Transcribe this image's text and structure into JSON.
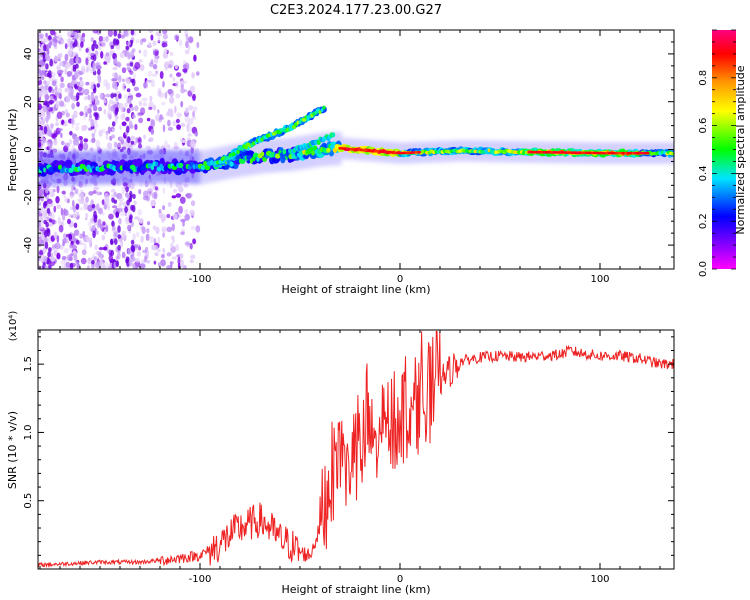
{
  "title": "C2E3.2024.177.23.00.G27",
  "chart_data": [
    {
      "type": "heatmap",
      "xlabel": "Height of straight line (km)",
      "ylabel": "Frequency (Hz)",
      "xlim": [
        -181,
        137
      ],
      "ylim": [
        -50,
        50
      ],
      "x_ticks": [
        "-100",
        "0",
        "100"
      ],
      "y_ticks": [
        "-40",
        "-20",
        "0",
        "20",
        "40"
      ],
      "colorbar": {
        "label": "Normalized spectral amplitude",
        "range": [
          0,
          1
        ],
        "ticks": [
          "0.0",
          "0.2",
          "0.4",
          "0.6",
          "0.8"
        ],
        "colors": [
          "#ff00ff",
          "#8800ff",
          "#0000ff",
          "#00e5ff",
          "#00ff00",
          "#ffff00",
          "#ff9900",
          "#ff0000",
          "#ff0080"
        ]
      },
      "main_track": [
        {
          "x": -181,
          "f": -8
        },
        {
          "x": -150,
          "f": -7.5
        },
        {
          "x": -120,
          "f": -7
        },
        {
          "x": -100,
          "f": -7.5
        },
        {
          "x": -85,
          "f": -5
        },
        {
          "x": -70,
          "f": -3
        },
        {
          "x": -55,
          "f": -2
        },
        {
          "x": -40,
          "f": 0
        },
        {
          "x": -30,
          "f": 0.5
        },
        {
          "x": -15,
          "f": -0.5
        },
        {
          "x": 0,
          "f": -1.5
        },
        {
          "x": 30,
          "f": -0.5
        },
        {
          "x": 60,
          "f": -1
        },
        {
          "x": 100,
          "f": -1.5
        },
        {
          "x": 137,
          "f": -1.5
        }
      ],
      "branch_track": [
        {
          "x": -92,
          "f": -6
        },
        {
          "x": -80,
          "f": 0
        },
        {
          "x": -70,
          "f": 4
        },
        {
          "x": -55,
          "f": 9
        },
        {
          "x": -45,
          "f": 14
        },
        {
          "x": -38,
          "f": 17
        }
      ]
    },
    {
      "type": "line",
      "xlabel": "Height of straight line (km)",
      "ylabel": "SNR (10 * v/v)",
      "y_multiplier": "(x10⁴)",
      "xlim": [
        -181,
        137
      ],
      "ylim": [
        0,
        1.75
      ],
      "x_ticks": [
        "-100",
        "0",
        "100"
      ],
      "y_ticks": [
        "0.5",
        "1.0",
        "1.5"
      ],
      "color": "#ee2222",
      "series": [
        {
          "x": [
            -181,
            -165,
            -150,
            -130,
            -115,
            -100,
            -95,
            -90,
            -85,
            -80,
            -75,
            -70,
            -65,
            -60,
            -55,
            -50,
            -45,
            -40,
            -35,
            -30,
            -25,
            -20,
            -15,
            -10,
            -5,
            0,
            5,
            10,
            15,
            20,
            25,
            30,
            40,
            50,
            60,
            70,
            80,
            85,
            90,
            100,
            110,
            120,
            130,
            137
          ],
          "y": [
            0.03,
            0.04,
            0.05,
            0.05,
            0.07,
            0.1,
            0.14,
            0.18,
            0.25,
            0.3,
            0.33,
            0.36,
            0.3,
            0.22,
            0.18,
            0.12,
            0.1,
            0.3,
            0.65,
            0.9,
            0.7,
            0.85,
            1.0,
            0.9,
            1.05,
            1.12,
            1.18,
            1.22,
            1.3,
            1.38,
            1.45,
            1.52,
            1.55,
            1.56,
            1.55,
            1.56,
            1.57,
            1.6,
            1.58,
            1.56,
            1.56,
            1.54,
            1.5,
            1.5
          ]
        }
      ]
    }
  ]
}
